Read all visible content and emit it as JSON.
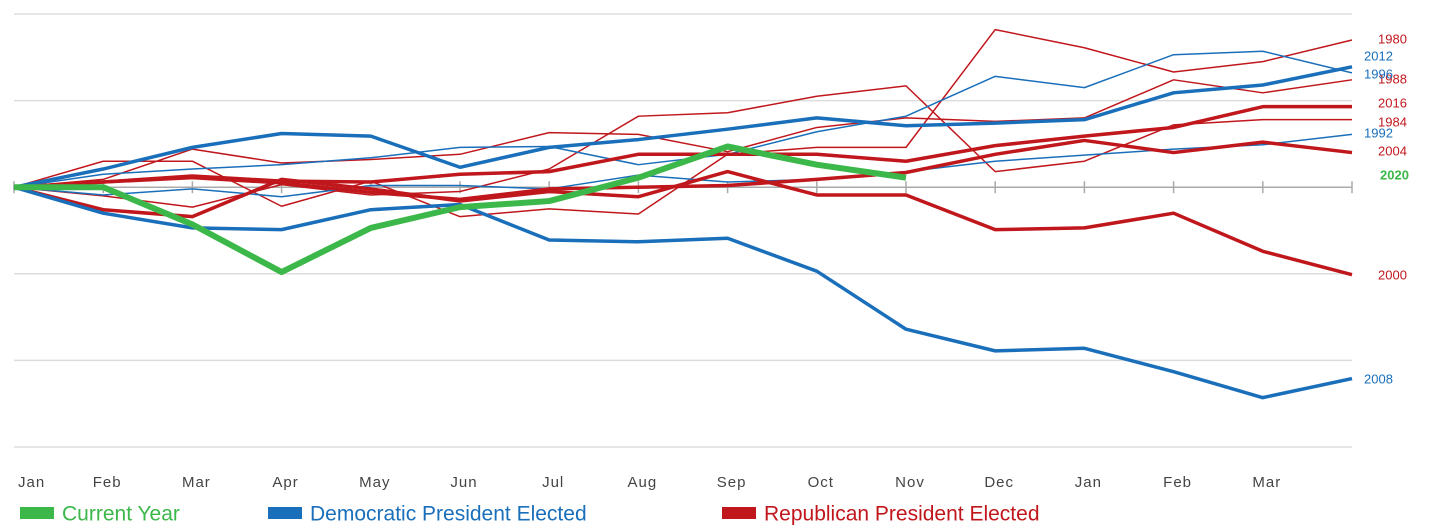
{
  "chart_data": {
    "type": "line",
    "categories": [
      "Jan",
      "Feb",
      "Mar",
      "Apr",
      "May",
      "Jun",
      "Jul",
      "Aug",
      "Sep",
      "Oct",
      "Nov",
      "Dec",
      "Jan",
      "Feb",
      "Mar",
      null
    ],
    "ylim": [
      -30,
      20
    ],
    "yticks": [
      -30,
      -20,
      -10,
      0,
      10,
      20
    ],
    "grid": true,
    "legend": [
      {
        "name": "Current Year",
        "color": "#3cb84a"
      },
      {
        "name": "Democratic President Elected",
        "color": "#1a6fba"
      },
      {
        "name": "Republican President Elected",
        "color": "#c0171c"
      }
    ],
    "series": [
      {
        "name": "1980",
        "color": "#c0171c",
        "line_width": 1.5,
        "values": [
          0,
          3,
          3,
          -2.2,
          0.7,
          -3.4,
          -2.5,
          -3.1,
          3.8,
          4.6,
          4.6,
          18.2,
          16.1,
          13.3,
          14.5,
          17.0
        ]
      },
      {
        "name": "1988",
        "color": "#c0171c",
        "line_width": 1.5,
        "values": [
          0,
          0.9,
          4.4,
          2.8,
          3.2,
          3.8,
          6.3,
          6.1,
          4.1,
          6.9,
          8,
          7.6,
          8,
          12.4,
          10.9,
          12.4
        ]
      },
      {
        "name": "1984",
        "color": "#c0171c",
        "line_width": 1.5,
        "values": [
          0,
          -1,
          -2.3,
          0.3,
          -0.9,
          -0.5,
          2.1,
          8.2,
          8.6,
          10.5,
          11.7,
          1.8,
          3,
          7.2,
          7.8,
          7.8
        ]
      },
      {
        "name": "1996",
        "color": "#1a6fba",
        "line_width": 1.5,
        "values": [
          0,
          1.5,
          2.1,
          2.6,
          3.4,
          4.6,
          4.7,
          2.6,
          3.8,
          6.4,
          8.2,
          12.8,
          11.5,
          15.3,
          15.7,
          13.2
        ]
      },
      {
        "name": "1992",
        "color": "#1a6fba",
        "line_width": 1.5,
        "values": [
          0,
          -0.9,
          -0.2,
          -1.1,
          0.2,
          0.2,
          -0.2,
          1.4,
          0.6,
          0.9,
          1.8,
          3,
          3.7,
          4.4,
          4.9,
          6.1
        ]
      },
      {
        "name": "2016",
        "color": "#c0171c",
        "line_width": 3.5,
        "values": [
          0,
          0.6,
          1.3,
          0.7,
          0.6,
          1.5,
          1.8,
          3.8,
          3.8,
          3.8,
          3,
          4.8,
          5.9,
          6.9,
          9.3,
          9.3
        ]
      },
      {
        "name": "2004",
        "color": "#c0171c",
        "line_width": 3.5,
        "values": [
          0,
          0.6,
          1.1,
          0.5,
          -0.6,
          -1.4,
          -0.2,
          0,
          0.2,
          0.9,
          1.7,
          3.8,
          5.4,
          4,
          5.2,
          4
        ]
      },
      {
        "name": "2000",
        "color": "#c0171c",
        "line_width": 3.5,
        "values": [
          0,
          -2.6,
          -3.4,
          0.9,
          -0.2,
          -1.6,
          -0.5,
          -1.1,
          1.8,
          -0.9,
          -0.9,
          -4.9,
          -4.7,
          -3,
          -7.4,
          -10.1
        ]
      },
      {
        "name": "2012",
        "color": "#1a6fba",
        "line_width": 3.5,
        "values": [
          0,
          2.1,
          4.6,
          6.2,
          5.9,
          2.3,
          4.6,
          5.5,
          6.7,
          8,
          7.1,
          7.4,
          7.8,
          10.9,
          11.8,
          13.9
        ]
      },
      {
        "name": "2008",
        "color": "#1a6fba",
        "line_width": 3.5,
        "values": [
          0,
          -3,
          -4.7,
          -4.9,
          -2.6,
          -2,
          -6.1,
          -6.3,
          -5.9,
          -9.7,
          -16.4,
          -18.9,
          -18.6,
          -21.3,
          -24.3,
          -22.1
        ]
      },
      {
        "name": "2020",
        "color": "#3cb84a",
        "line_width": 6,
        "bold_label": true,
        "values": [
          0,
          0,
          -4.3,
          -9.8,
          -4.7,
          -2.3,
          -1.6,
          1.1,
          4.7,
          2.6,
          1.1,
          null,
          null,
          null,
          null,
          null
        ]
      }
    ]
  }
}
